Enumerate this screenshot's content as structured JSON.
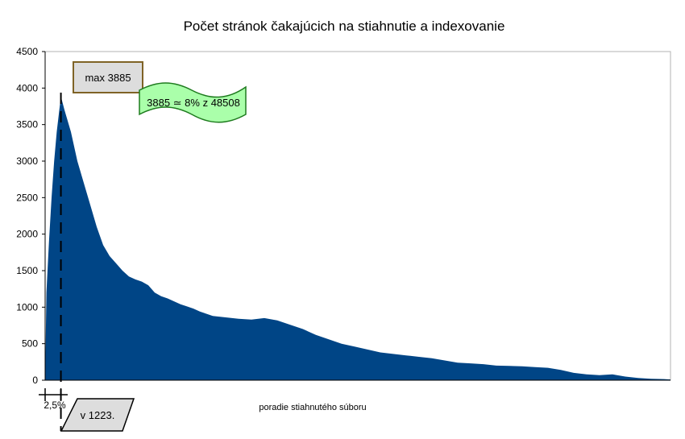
{
  "chart_data": {
    "type": "area",
    "title": "Počet stránok čakajúcich na stiahnutie a indexovanie",
    "xlabel": "poradie stiahnutého súboru",
    "ylabel": "",
    "ylim": [
      0,
      4500
    ],
    "yticks": [
      0,
      500,
      1000,
      1500,
      2000,
      2500,
      3000,
      3500,
      4000,
      4500
    ],
    "x_total": 48508,
    "grid": false,
    "legend": "none",
    "series": [
      {
        "color": "#004586",
        "x": [
          0,
          100,
          300,
          500,
          700,
          900,
          1100,
          1223,
          1500,
          2000,
          2500,
          3000,
          3500,
          4000,
          4500,
          5000,
          5500,
          6000,
          6500,
          7000,
          7500,
          8000,
          8500,
          9000,
          9500,
          10000,
          10500,
          11000,
          11500,
          12000,
          12500,
          13000,
          14000,
          15000,
          16000,
          17000,
          18000,
          19000,
          20000,
          21000,
          22000,
          23000,
          24000,
          25000,
          26000,
          27000,
          28000,
          29000,
          30000,
          31000,
          32000,
          33000,
          34000,
          35000,
          36000,
          37000,
          38000,
          39000,
          40000,
          41000,
          42000,
          43000,
          44000,
          45000,
          46000,
          47000,
          48000,
          48508
        ],
        "y": [
          0,
          1200,
          1900,
          2500,
          3000,
          3400,
          3700,
          3885,
          3700,
          3400,
          3000,
          2700,
          2400,
          2100,
          1850,
          1700,
          1600,
          1500,
          1420,
          1380,
          1350,
          1300,
          1200,
          1150,
          1120,
          1080,
          1040,
          1010,
          980,
          940,
          910,
          880,
          860,
          840,
          830,
          850,
          820,
          760,
          700,
          620,
          560,
          500,
          460,
          420,
          380,
          360,
          340,
          320,
          300,
          270,
          240,
          230,
          220,
          200,
          195,
          190,
          180,
          170,
          140,
          100,
          80,
          70,
          80,
          50,
          30,
          20,
          15,
          10
        ]
      }
    ],
    "annotations": {
      "max_label": "max 3885",
      "ratio_label": "3885 ≃ 8% z 48508",
      "percent_label": "2,5%",
      "position_label": "v 1223."
    },
    "marker_x": 1223
  }
}
